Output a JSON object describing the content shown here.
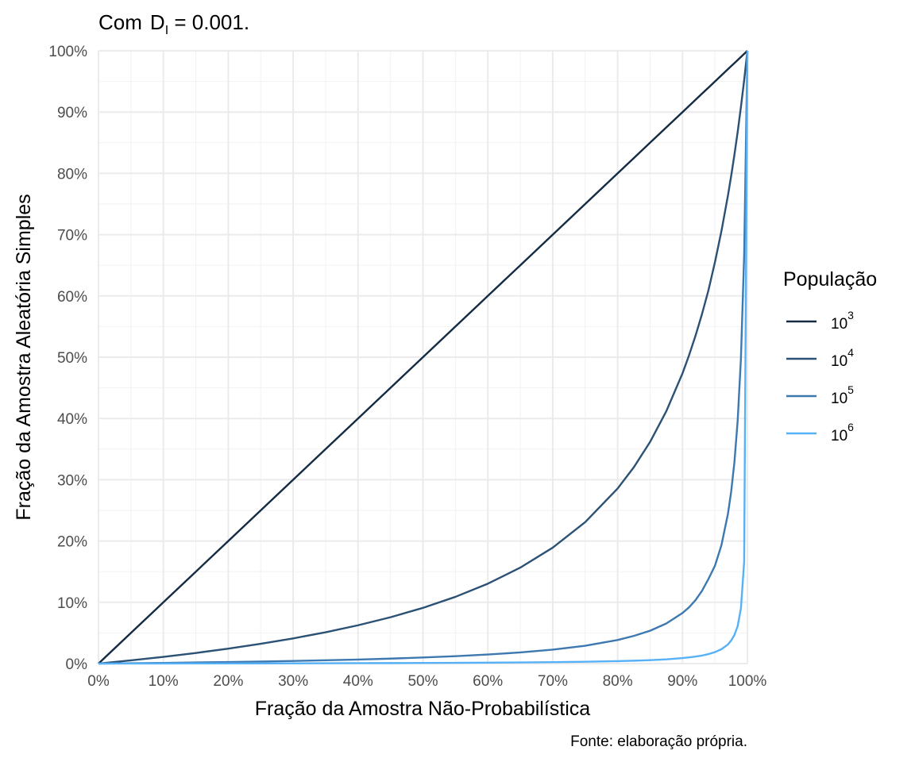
{
  "chart_data": {
    "type": "line",
    "title": {
      "prefix": "Com",
      "symbol": "D",
      "subscript": "I",
      "suffix": " = 0.001."
    },
    "xlabel": "Fração da Amostra Não-Probabilística",
    "ylabel": "Fração da Amostra Aleatória Simples",
    "caption": "Fonte: elaboração própria.",
    "xlim": [
      0,
      1
    ],
    "ylim": [
      0,
      1
    ],
    "grid": true,
    "legend_position": "right",
    "x_ticks": [
      "0%",
      "10%",
      "20%",
      "30%",
      "40%",
      "50%",
      "60%",
      "70%",
      "80%",
      "90%",
      "100%"
    ],
    "y_ticks": [
      "0%",
      "10%",
      "20%",
      "30%",
      "40%",
      "50%",
      "60%",
      "70%",
      "80%",
      "90%",
      "100%"
    ],
    "legend": {
      "title": "População",
      "entries": [
        {
          "base": "10",
          "exp": "3",
          "color": "#132b43"
        },
        {
          "base": "10",
          "exp": "4",
          "color": "#2b5174"
        },
        {
          "base": "10",
          "exp": "5",
          "color": "#3d79b0"
        },
        {
          "base": "10",
          "exp": "6",
          "color": "#56b1f7"
        }
      ]
    },
    "x": [
      0,
      0.05,
      0.1,
      0.15,
      0.2,
      0.25,
      0.3,
      0.35,
      0.4,
      0.45,
      0.5,
      0.55,
      0.6,
      0.65,
      0.7,
      0.75,
      0.8,
      0.825,
      0.85,
      0.875,
      0.9,
      0.91,
      0.92,
      0.93,
      0.94,
      0.95,
      0.96,
      0.97,
      0.975,
      0.98,
      0.985,
      0.99,
      0.995,
      1.0
    ],
    "series": [
      {
        "name": "10³",
        "color": "#132b43",
        "values": [
          0,
          0.05,
          0.1,
          0.15,
          0.2,
          0.25,
          0.3,
          0.35,
          0.4,
          0.45,
          0.5,
          0.55,
          0.6,
          0.65,
          0.7,
          0.75,
          0.8,
          0.825,
          0.85,
          0.875,
          0.9,
          0.91,
          0.92,
          0.93,
          0.94,
          0.95,
          0.96,
          0.97,
          0.975,
          0.98,
          0.985,
          0.99,
          0.995,
          1.0
        ]
      },
      {
        "name": "10⁴",
        "color": "#2b5174",
        "values": [
          0,
          0.0052,
          0.011,
          0.0173,
          0.0244,
          0.0323,
          0.0411,
          0.0511,
          0.0625,
          0.0756,
          0.0909,
          0.1089,
          0.1304,
          0.1566,
          0.1892,
          0.2308,
          0.2857,
          0.3204,
          0.3617,
          0.4118,
          0.4737,
          0.5029,
          0.5349,
          0.5703,
          0.6094,
          0.6552,
          0.7059,
          0.7638,
          0.7959,
          0.8305,
          0.8676,
          0.9083,
          0.952,
          1.0
        ]
      },
      {
        "name": "10⁵",
        "color": "#3d79b0",
        "values": [
          0,
          0.0005,
          0.0011,
          0.0018,
          0.0025,
          0.0033,
          0.0043,
          0.0054,
          0.0066,
          0.0081,
          0.01,
          0.0121,
          0.0148,
          0.0182,
          0.0228,
          0.0291,
          0.0385,
          0.0452,
          0.0536,
          0.0654,
          0.0826,
          0.0917,
          0.1035,
          0.1186,
          0.1381,
          0.1597,
          0.1933,
          0.2443,
          0.2807,
          0.3289,
          0.3965,
          0.4975,
          0.6661,
          1.0
        ]
      },
      {
        "name": "10⁶",
        "color": "#56b1f7",
        "values": [
          0,
          5e-05,
          0.0001,
          0.0002,
          0.0003,
          0.0003,
          0.0004,
          0.0005,
          0.0007,
          0.0008,
          0.001,
          0.0012,
          0.0015,
          0.0019,
          0.0023,
          0.003,
          0.004,
          0.0047,
          0.0056,
          0.0069,
          0.009,
          0.0101,
          0.0114,
          0.0131,
          0.0155,
          0.0187,
          0.0235,
          0.0312,
          0.0377,
          0.0466,
          0.0612,
          0.0902,
          0.1661,
          1.0
        ]
      }
    ]
  }
}
